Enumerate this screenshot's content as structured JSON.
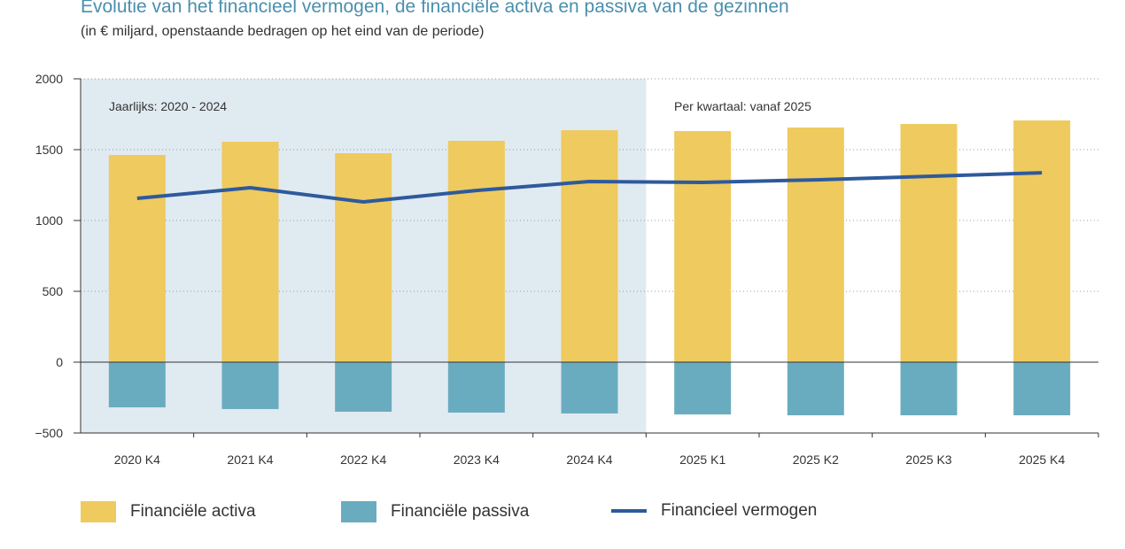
{
  "chart_data": {
    "type": "bar",
    "title": "Evolutie van het financieel vermogen, de financiële activa en passiva van de gezinnen",
    "subtitle": "(in € miljard, openstaande bedragen op het eind van de periode)",
    "categories": [
      "2020 K4",
      "2021 K4",
      "2022 K4",
      "2023 K4",
      "2024 K4",
      "2025 K1",
      "2025 K2",
      "2025 K3",
      "2025 K4"
    ],
    "series": [
      {
        "name": "Financiële activa",
        "type": "bar",
        "color": "#eeca5f",
        "values": [
          1462,
          1556,
          1475,
          1562,
          1637,
          1631,
          1656,
          1681,
          1706
        ]
      },
      {
        "name": "Financiële passiva",
        "type": "bar",
        "color": "#6aacbf",
        "values": [
          -319,
          -331,
          -350,
          -356,
          -362,
          -369,
          -375,
          -375,
          -375
        ]
      },
      {
        "name": "Financieel vermogen",
        "type": "line",
        "color": "#2e5a9c",
        "values": [
          1156,
          1231,
          1131,
          1212,
          1275,
          1269,
          1287,
          1312,
          1337
        ]
      }
    ],
    "ylim": [
      -500,
      2000
    ],
    "yticks": [
      "2000",
      "1500",
      "1000",
      "500",
      "0",
      "−500"
    ],
    "ytick_values": [
      2000,
      1500,
      1000,
      500,
      0,
      -500
    ],
    "annotations": [
      "Jaarlijks: 2020 - 2024",
      "Per kwartaal: vanaf 2025"
    ],
    "shaded_region_categories": 5,
    "shade_color": "#e0eaf1",
    "grid": true,
    "legend_position": "bottom"
  }
}
